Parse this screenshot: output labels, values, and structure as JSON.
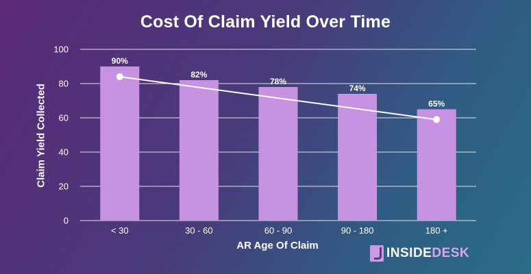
{
  "chart_data": {
    "type": "bar",
    "title": "Cost Of Claim Yield Over Time",
    "xlabel": "AR Age Of Claim",
    "ylabel": "Claim Yield Collected",
    "categories": [
      "< 30",
      "30 - 60",
      "60 - 90",
      "90 - 180",
      "180 +"
    ],
    "values": [
      90,
      82,
      78,
      74,
      65
    ],
    "data_labels": [
      "90%",
      "82%",
      "78%",
      "74%",
      "65%"
    ],
    "trendline": {
      "type": "line",
      "from": {
        "category": "< 30",
        "value": 84
      },
      "to": {
        "category": "180 +",
        "value": 59
      }
    },
    "ylim": [
      0,
      100
    ],
    "yticks": [
      0,
      20,
      40,
      60,
      80,
      100
    ],
    "grid": true,
    "legend": "none",
    "colors": {
      "bar": "#c792e2",
      "trendline": "#ffffff",
      "text": "#ffffff",
      "grid": "#ffffff"
    }
  },
  "brand": {
    "part1": "INSIDE",
    "part2": "DESK",
    "icon": "insidedesk-logo-icon"
  }
}
